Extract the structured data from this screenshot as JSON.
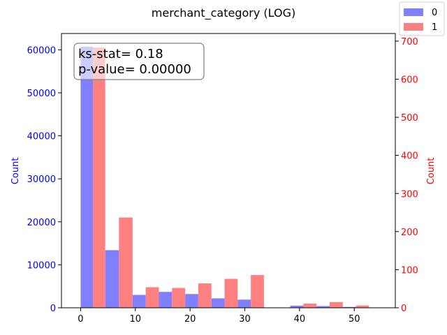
{
  "chart_data": {
    "type": "bar",
    "title": "merchant_category (LOG)",
    "xlabel": "",
    "ylabel_left": "Count",
    "ylabel_right": "Count",
    "xlim": [
      -3.5,
      57.5
    ],
    "ylim_left": [
      0,
      63800
    ],
    "ylim_right": [
      0,
      720
    ],
    "x_ticks": [
      0,
      10,
      20,
      30,
      40,
      50
    ],
    "y_ticks_left": [
      0,
      10000,
      20000,
      30000,
      40000,
      50000,
      60000
    ],
    "y_ticks_right": [
      0,
      100,
      200,
      300,
      400,
      500,
      600,
      700
    ],
    "bins": [
      [
        0,
        4.5
      ],
      [
        4.5,
        9.5
      ],
      [
        9.5,
        14.3
      ],
      [
        14.3,
        19.1
      ],
      [
        19.1,
        23.9
      ],
      [
        23.9,
        28.7
      ],
      [
        28.7,
        33.5
      ],
      [
        33.5,
        38.3
      ],
      [
        38.3,
        43.1
      ],
      [
        43.1,
        47.9
      ],
      [
        47.9,
        52.7
      ],
      [
        52.7,
        57.5
      ]
    ],
    "series": [
      {
        "name": "0",
        "axis": "left",
        "color": "#8080ff",
        "values": [
          60700,
          13400,
          3000,
          3700,
          3200,
          2200,
          1900,
          0,
          500,
          400,
          200,
          0
        ]
      },
      {
        "name": "1",
        "axis": "right",
        "color": "#ff8080",
        "values": [
          683,
          237,
          54,
          52,
          64,
          76,
          86,
          0,
          11,
          15,
          6,
          0
        ]
      }
    ],
    "left_axis_color": "#0000ff",
    "right_axis_color": "#ff0000",
    "legend_position": "top-right",
    "annotation": {
      "lines": [
        "ks-stat= 0.18",
        "p-value= 0.00000"
      ],
      "position": "top-left"
    }
  }
}
